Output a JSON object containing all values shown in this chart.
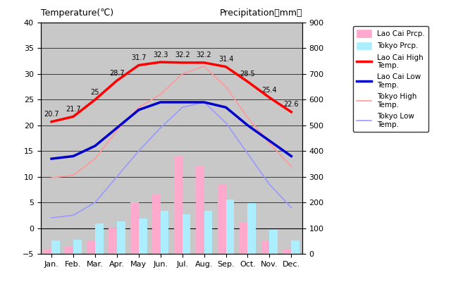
{
  "months": [
    "Jan.",
    "Feb.",
    "Mar.",
    "Apr.",
    "May",
    "Jun.",
    "Jul.",
    "Aug.",
    "Sep.",
    "Oct.",
    "Nov.",
    "Dec."
  ],
  "lao_cai_high": [
    20.7,
    21.7,
    25.0,
    28.7,
    31.7,
    32.3,
    32.2,
    32.2,
    31.4,
    28.5,
    25.4,
    22.6
  ],
  "lao_cai_low": [
    13.5,
    14.0,
    16.0,
    19.5,
    23.0,
    24.5,
    24.5,
    24.5,
    23.5,
    20.0,
    17.0,
    14.0
  ],
  "tokyo_high": [
    9.8,
    10.3,
    13.5,
    19.0,
    23.5,
    26.0,
    30.0,
    31.5,
    27.5,
    21.5,
    16.5,
    12.0
  ],
  "tokyo_low": [
    2.0,
    2.5,
    5.0,
    10.0,
    15.0,
    19.5,
    23.5,
    24.5,
    20.5,
    14.5,
    8.5,
    4.0
  ],
  "lao_cai_prcp_mm": [
    20,
    30,
    50,
    100,
    200,
    230,
    380,
    340,
    270,
    120,
    50,
    20
  ],
  "tokyo_prcp_mm": [
    52,
    56,
    117,
    125,
    138,
    168,
    154,
    168,
    210,
    197,
    93,
    51
  ],
  "lao_cai_high_labels": [
    "20.7",
    "21.7",
    "25",
    "28.7",
    "31.7",
    "32.3",
    "32.2",
    "32.2",
    "31.4",
    "28.5",
    "25.4",
    "22.6"
  ],
  "temp_ylim": [
    -5,
    40
  ],
  "prcp_ylim": [
    0,
    900
  ],
  "temp_yticks": [
    -5,
    0,
    5,
    10,
    15,
    20,
    25,
    30,
    35,
    40
  ],
  "prcp_yticks": [
    0,
    100,
    200,
    300,
    400,
    500,
    600,
    700,
    800,
    900
  ],
  "bar_width": 0.38,
  "lao_cai_high_color": "#ff0000",
  "lao_cai_low_color": "#0000cc",
  "tokyo_high_color": "#ff9999",
  "tokyo_low_color": "#9999ff",
  "lao_cai_prcp_color": "#ffaacc",
  "tokyo_prcp_color": "#aaeeff",
  "background_color": "#c8c8c8",
  "title_left": "Temperature(℃)",
  "title_right": "Precipitation（mm）",
  "legend_labels": [
    "Lao Cai Prcp.",
    "Tokyo Prcp.",
    "Lao Cai High\nTemp.",
    "Lao Cai Low\nTemp.",
    "Tokyo High\nTemp.",
    "Tokyo Low\nTemp."
  ]
}
